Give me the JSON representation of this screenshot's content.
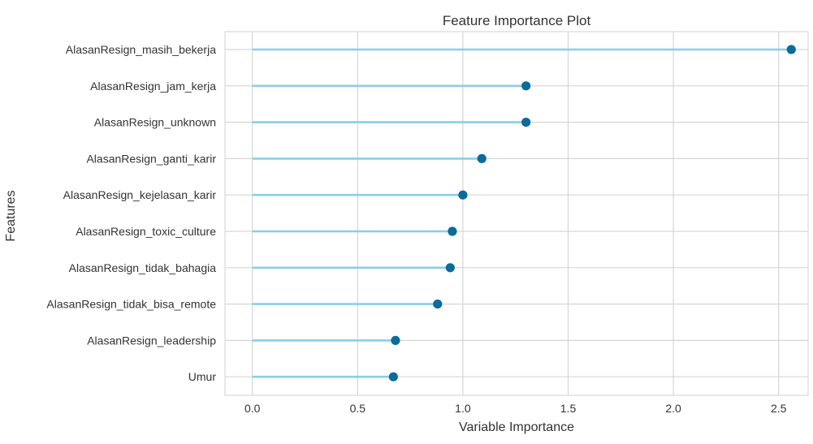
{
  "chart_data": {
    "type": "lollipop",
    "title": "Feature Importance Plot",
    "xlabel": "Variable Importance",
    "ylabel": "Features",
    "xlim": [
      -0.13,
      2.64
    ],
    "xticks": [
      0.0,
      0.5,
      1.0,
      1.5,
      2.0,
      2.5
    ],
    "xtick_labels": [
      "0.0",
      "0.5",
      "1.0",
      "1.5",
      "2.0",
      "2.5"
    ],
    "grid": true,
    "categories": [
      "AlasanResign_masih_bekerja",
      "AlasanResign_jam_kerja",
      "AlasanResign_unknown",
      "AlasanResign_ganti_karir",
      "AlasanResign_kejelasan_karir",
      "AlasanResign_toxic_culture",
      "AlasanResign_tidak_bahagia",
      "AlasanResign_tidak_bisa_remote",
      "AlasanResign_leadership",
      "Umur"
    ],
    "values": [
      2.56,
      1.3,
      1.3,
      1.09,
      1.0,
      0.95,
      0.94,
      0.88,
      0.68,
      0.67
    ],
    "stem_color": "#87CEEB",
    "marker_color": "#0C6B9A",
    "grid_color": "#D6D6D6",
    "frame_color": "#D9D9D9",
    "text_color": "#333333"
  }
}
